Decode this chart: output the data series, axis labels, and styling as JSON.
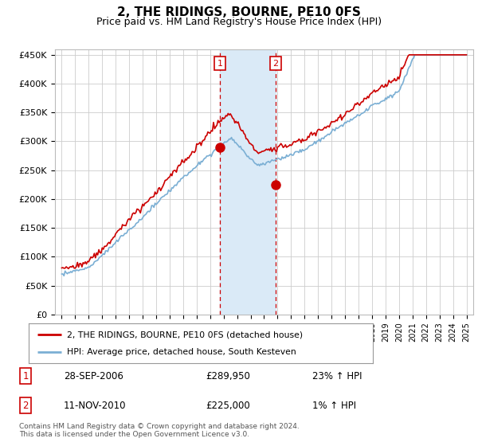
{
  "title": "2, THE RIDINGS, BOURNE, PE10 0FS",
  "subtitle": "Price paid vs. HM Land Registry's House Price Index (HPI)",
  "ylabel_ticks": [
    "£0",
    "£50K",
    "£100K",
    "£150K",
    "£200K",
    "£250K",
    "£300K",
    "£350K",
    "£400K",
    "£450K"
  ],
  "ytick_values": [
    0,
    50000,
    100000,
    150000,
    200000,
    250000,
    300000,
    350000,
    400000,
    450000
  ],
  "ylim": [
    0,
    460000
  ],
  "xlim_start": 1994.5,
  "xlim_end": 2025.5,
  "sale1_x": 2006.74,
  "sale1_y": 289950,
  "sale2_x": 2010.86,
  "sale2_y": 225000,
  "sale1_date": "28-SEP-2006",
  "sale1_price": "£289,950",
  "sale1_hpi": "23% ↑ HPI",
  "sale2_date": "11-NOV-2010",
  "sale2_price": "£225,000",
  "sale2_hpi": "1% ↑ HPI",
  "shade_x1": 2006.74,
  "shade_x2": 2010.86,
  "legend_line1": "2, THE RIDINGS, BOURNE, PE10 0FS (detached house)",
  "legend_line2": "HPI: Average price, detached house, South Kesteven",
  "footer": "Contains HM Land Registry data © Crown copyright and database right 2024.\nThis data is licensed under the Open Government Licence v3.0.",
  "line_color_hpi": "#7bafd4",
  "line_color_price": "#cc0000",
  "shade_color": "#daeaf7",
  "vline_color": "#cc0000",
  "grid_color": "#cccccc",
  "background_color": "#ffffff",
  "title_fontsize": 11,
  "subtitle_fontsize": 9
}
